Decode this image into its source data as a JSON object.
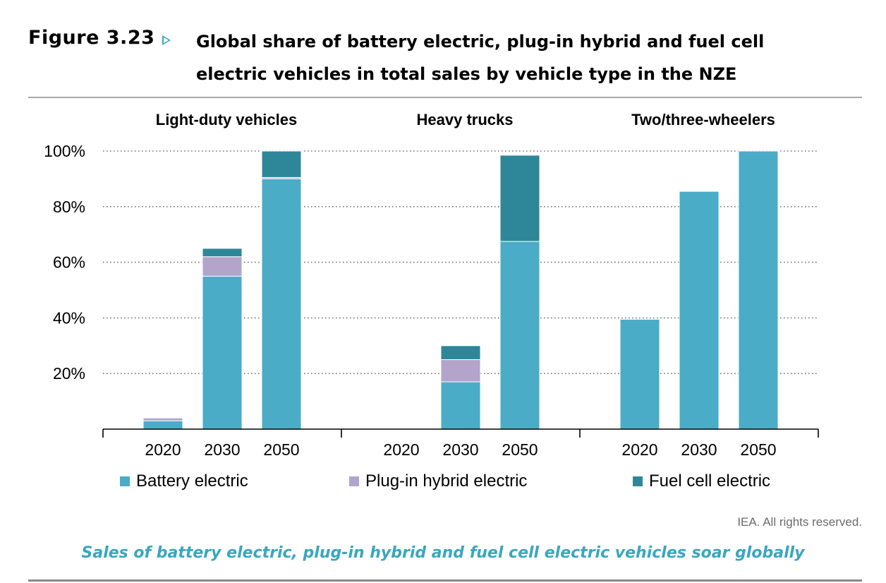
{
  "figure": {
    "label": "Figure 3.23",
    "title_line1": "Global share of battery electric, plug-in hybrid and fuel cell",
    "title_line2": "electric vehicles in total sales by vehicle type in the NZE",
    "credit": "IEA. All rights reserved.",
    "caption": "Sales of battery electric, plug-in hybrid and fuel cell electric vehicles soar globally",
    "accent_color": "#3aa6bf"
  },
  "chart_data": {
    "type": "bar",
    "stacked": true,
    "ylim": [
      0,
      100
    ],
    "yticks": [
      20,
      40,
      60,
      80,
      100
    ],
    "ytick_labels": [
      "20%",
      "40%",
      "60%",
      "80%",
      "100%"
    ],
    "grid": "dotted horizontal",
    "legend_position": "bottom",
    "series": [
      {
        "name": "Battery electric",
        "color": "#4aacc6"
      },
      {
        "name": "Plug-in hybrid electric",
        "color": "#b3a4cc"
      },
      {
        "name": "Fuel cell electric",
        "color": "#2e8799"
      }
    ],
    "panels": [
      {
        "title": "Light-duty vehicles",
        "categories": [
          "2020",
          "2030",
          "2050"
        ],
        "values": [
          [
            3,
            1,
            0
          ],
          [
            55,
            7,
            3
          ],
          [
            90,
            0.5,
            9.5
          ]
        ]
      },
      {
        "title": "Heavy trucks",
        "categories": [
          "2020",
          "2030",
          "2050"
        ],
        "values": [
          [
            0,
            0,
            0
          ],
          [
            17,
            8,
            5
          ],
          [
            67.5,
            0,
            31
          ]
        ]
      },
      {
        "title": "Two/three-wheelers",
        "categories": [
          "2020",
          "2030",
          "2050"
        ],
        "values": [
          [
            39.5,
            0,
            0
          ],
          [
            85.5,
            0,
            0
          ],
          [
            100,
            0,
            0
          ]
        ]
      }
    ]
  }
}
